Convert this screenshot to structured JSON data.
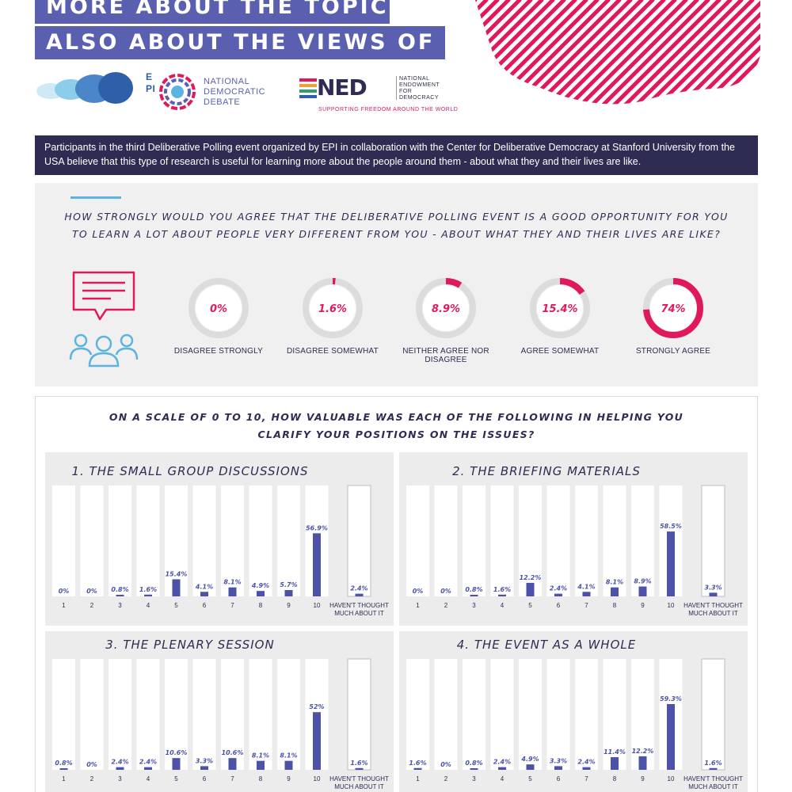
{
  "header": {
    "banner_line1": "MORE ABOUT THE TOPICS, BUT",
    "banner_line2": "ALSO ABOUT THE VIEWS OF OTHERS",
    "accent_color": "#5a5fb0",
    "stripe_color": "#e0195c"
  },
  "logos": {
    "epi": "EPI",
    "national_debate": [
      "NATIONAL",
      "DEMOCRATIC",
      "DEBATE"
    ],
    "ned_mark": "NED",
    "ned_name": [
      "NATIONAL",
      "ENDOWMENT",
      "FOR",
      "DEMOCRACY"
    ],
    "ned_tagline": "SUPPORTING FREEDOM AROUND THE WORLD"
  },
  "intro": "Participants in the third Deliberative Polling event organized by EPI in collaboration with the Center for Deliberative Democracy at Stanford University from the USA believe that this type of research is useful for learning more about the people around them - about what they and their lives are like.",
  "question1": {
    "line1": "HOW STRONGLY WOULD YOU AGREE THAT THE DELIBERATIVE POLLING EVENT IS A GOOD OPPORTUNITY FOR YOU",
    "line2": "TO LEARN A LOT ABOUT PEOPLE VERY DIFFERENT FROM YOU - ABOUT WHAT THEY AND THEIR LIVES ARE LIKE?",
    "icons": [
      "speech-bubble-icon",
      "people-group-icon"
    ]
  },
  "question2": {
    "line1": "ON A SCALE OF 0 TO 10, HOW VALUABLE WAS EACH OF THE FOLLOWING IN HELPING YOU",
    "line2": "CLARIFY YOUR POSITIONS ON THE ISSUES?"
  },
  "chart_data": [
    {
      "type": "pie",
      "categories": [
        "DISAGREE STRONGLY",
        "DISAGREE SOMEWHAT",
        "NEITHER AGREE NOR DISAGREE",
        "AGREE SOMEWHAT",
        "STRONGLY AGREE"
      ],
      "values": [
        0,
        1.6,
        8.9,
        15.4,
        74
      ],
      "labels": [
        "0%",
        "1.6%",
        "8.9%",
        "15.4%",
        "74%"
      ],
      "colors": {
        "fill": "#e0195c",
        "track": "#dcdcdc"
      }
    },
    {
      "type": "bar",
      "title": "1. THE SMALL GROUP DISCUSSIONS",
      "categories": [
        "1",
        "2",
        "3",
        "4",
        "5",
        "6",
        "7",
        "8",
        "9",
        "10"
      ],
      "values": [
        0,
        0,
        0.8,
        1.6,
        15.4,
        4.1,
        8.1,
        4.9,
        5.7,
        56.9
      ],
      "labels": [
        "0%",
        "0%",
        "0.8%",
        "1.6%",
        "15.4%",
        "4.1%",
        "8.1%",
        "4.9%",
        "5.7%",
        "56.9%"
      ],
      "extra": {
        "category": "HAVEN'T THOUGHT MUCH ABOUT IT",
        "value": 2.4,
        "label": "2.4%"
      },
      "ylim": [
        0,
        100
      ]
    },
    {
      "type": "bar",
      "title": "2. THE BRIEFING MATERIALS",
      "categories": [
        "1",
        "2",
        "3",
        "4",
        "5",
        "6",
        "7",
        "8",
        "9",
        "10"
      ],
      "values": [
        0,
        0,
        0.8,
        1.6,
        12.2,
        2.4,
        4.1,
        8.1,
        8.9,
        58.5
      ],
      "labels": [
        "0%",
        "0%",
        "0.8%",
        "1.6%",
        "12.2%",
        "2.4%",
        "4.1%",
        "8.1%",
        "8.9%",
        "58.5%"
      ],
      "extra": {
        "category": "HAVEN'T THOUGHT MUCH ABOUT IT",
        "value": 3.3,
        "label": "3.3%"
      },
      "ylim": [
        0,
        100
      ]
    },
    {
      "type": "bar",
      "title": "3. THE PLENARY SESSION",
      "categories": [
        "1",
        "2",
        "3",
        "4",
        "5",
        "6",
        "7",
        "8",
        "9",
        "10"
      ],
      "values": [
        0.8,
        0,
        2.4,
        2.4,
        10.6,
        3.3,
        10.6,
        8.1,
        8.1,
        52
      ],
      "labels": [
        "0.8%",
        "0%",
        "2.4%",
        "2.4%",
        "10.6%",
        "3.3%",
        "10.6%",
        "8.1%",
        "8.1%",
        "52%"
      ],
      "extra": {
        "category": "HAVEN'T THOUGHT MUCH ABOUT IT",
        "value": 1.6,
        "label": "1.6%"
      },
      "ylim": [
        0,
        100
      ]
    },
    {
      "type": "bar",
      "title": "4. THE EVENT AS A WHOLE",
      "categories": [
        "1",
        "2",
        "3",
        "4",
        "5",
        "6",
        "7",
        "8",
        "9",
        "10"
      ],
      "values": [
        1.6,
        0,
        0.8,
        2.4,
        4.9,
        3.3,
        2.4,
        11.4,
        12.2,
        59.3
      ],
      "labels": [
        "1.6%",
        "0%",
        "0.8%",
        "2.4%",
        "4.9%",
        "3.3%",
        "2.4%",
        "11.4%",
        "12.2%",
        "59.3%"
      ],
      "extra": {
        "category": "HAVEN'T THOUGHT MUCH ABOUT IT",
        "value": 1.6,
        "label": "1.6%"
      },
      "ylim": [
        0,
        100
      ]
    }
  ],
  "bar_color": "#4c52a8"
}
